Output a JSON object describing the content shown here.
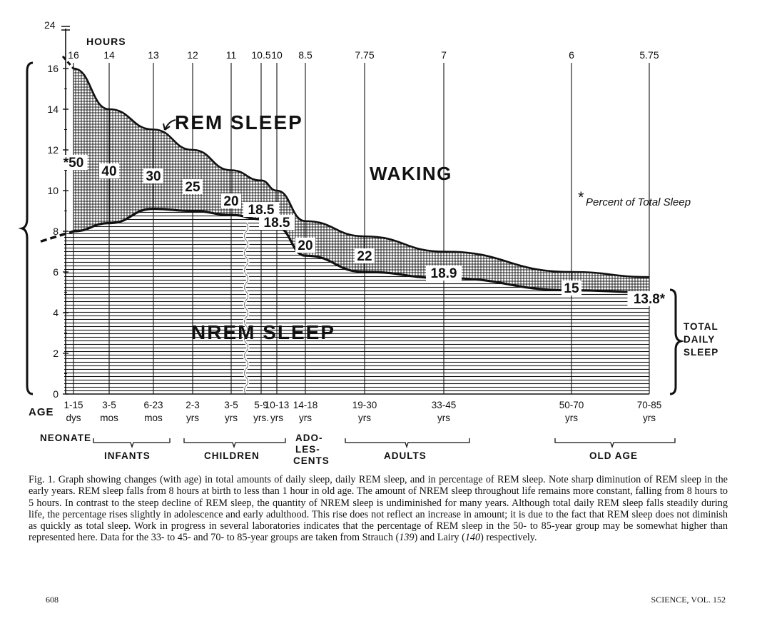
{
  "chart_data": {
    "type": "area",
    "ylabel": "HOURS",
    "xlabel": "AGE",
    "ylim": [
      0,
      16
    ],
    "y_axis_break_label": "24",
    "y_ticks": [
      "0",
      "2",
      "4",
      "6",
      "8",
      "10",
      "12",
      "14",
      "16"
    ],
    "age_groups": [
      "1-15 dys",
      "3-5 mos",
      "6-23 mos",
      "2-3 yrs",
      "3-5 yrs",
      "5-9 yrs.",
      "10-13 yrs",
      "14-18 yrs",
      "19-30 yrs",
      "33-45 yrs",
      "50-70 yrs",
      "70-85 yrs"
    ],
    "total_sleep_labels": [
      "16",
      "14",
      "13",
      "12",
      "11",
      "10.5",
      "10",
      "8.5",
      "7.75",
      "7",
      "6",
      "5.75"
    ],
    "rem_percent_labels": [
      "*50",
      "40",
      "30",
      "25",
      "20",
      "18.5",
      "18.5",
      "20",
      "22",
      "18.9",
      "15",
      "13.8*"
    ],
    "total_sleep_hours": [
      16,
      14,
      13,
      12,
      11,
      10.5,
      10,
      8.5,
      7.75,
      7,
      6,
      5.75
    ],
    "nrem_sleep_hours": [
      8,
      8.4,
      9.1,
      9,
      8.8,
      8.6,
      8.2,
      6.8,
      6,
      5.7,
      5.1,
      5
    ],
    "rem_percent": [
      50,
      40,
      30,
      25,
      20,
      18.5,
      18.5,
      20,
      22,
      18.9,
      15,
      13.8
    ],
    "series": [
      {
        "name": "REM SLEEP"
      },
      {
        "name": "NREM SLEEP"
      },
      {
        "name": "WAKING"
      }
    ],
    "annotations": {
      "percent_note": "Percent of Total Sleep",
      "asterisk": "*",
      "total_daily_sleep": [
        "TOTAL",
        "DAILY",
        "SLEEP"
      ]
    },
    "life_stages": [
      "NEONATE",
      "INFANTS",
      "CHILDREN",
      "ADO-",
      "LES-",
      "CENTS",
      "ADULTS",
      "OLD AGE"
    ]
  },
  "caption": {
    "figure_label": "Fig. 1.",
    "text_1": " Graph showing changes (with age) in total amounts of daily sleep, daily REM sleep, and in percentage of REM sleep. Note sharp diminution of REM sleep in the early years. REM sleep falls from 8 hours at birth to less than 1 hour in old age. The amount of NREM sleep throughout life remains more constant, falling from 8 hours to 5 hours. In contrast to the steep decline of REM sleep, the quantity of NREM sleep is undiminished for many years. Although total daily REM sleep falls steadily during life, the percentage rises slightly in adolescence and early adulthood. This rise does not reflect an increase in amount; it is due to the fact that REM sleep does not diminish as quickly as total sleep. Work in progress in several laboratories indicates that the percentage of REM sleep in the 50- to 85-year group may be somewhat higher than represented here. Data for the 33- to 45- and 70- to 85-year groups are taken from Strauch (",
    "ref_1": "139",
    "text_2": ") and Lairy (",
    "ref_2": "140",
    "text_3": ") respectively."
  },
  "footer": {
    "page_number": "608",
    "journal": "SCIENCE, VOL. 152"
  },
  "colors": {
    "ink": "#111111",
    "paper": "#ffffff"
  }
}
